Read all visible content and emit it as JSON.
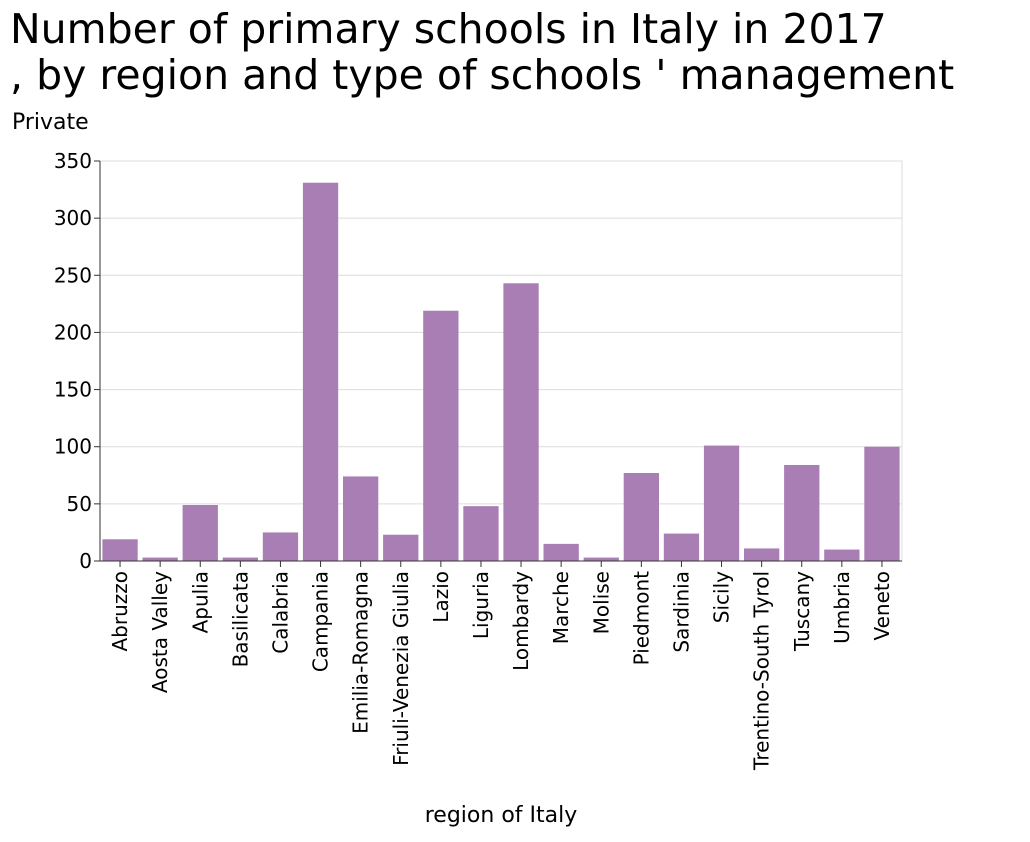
{
  "chart_data": {
    "type": "bar",
    "title": "Number of primary schools in Italy in 2017\n, by region and type of schools ' management",
    "ylabel": "Private",
    "xlabel": "region of Italy",
    "ylim": [
      0,
      350
    ],
    "yticks": [
      0,
      50,
      100,
      150,
      200,
      250,
      300,
      350
    ],
    "grid": true,
    "bar_color": "#a87eb4",
    "categories": [
      "Abruzzo",
      "Aosta Valley",
      "Apulia",
      "Basilicata",
      "Calabria",
      "Campania",
      "Emilia-Romagna",
      "Friuli-Venezia Giulia",
      "Lazio",
      "Liguria",
      "Lombardy",
      "Marche",
      "Molise",
      "Piedmont",
      "Sardinia",
      "Sicily",
      "Trentino-South Tyrol",
      "Tuscany",
      "Umbria",
      "Veneto"
    ],
    "values": [
      19,
      3,
      49,
      3,
      25,
      331,
      74,
      23,
      219,
      48,
      243,
      15,
      3,
      77,
      24,
      101,
      11,
      84,
      10,
      100
    ]
  }
}
